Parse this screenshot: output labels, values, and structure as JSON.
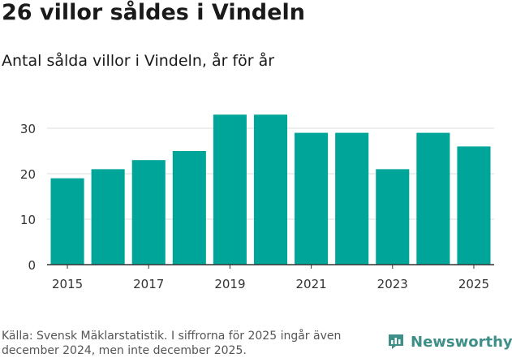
{
  "headline": "26 villor såldes i Vindeln",
  "chart_data": {
    "type": "bar",
    "title": "Antal sålda villor i Vindeln, år för år",
    "xlabel": "",
    "ylabel": "",
    "categories": [
      "2015",
      "2016",
      "2017",
      "2018",
      "2019",
      "2020",
      "2021",
      "2022",
      "2023",
      "2024",
      "2025"
    ],
    "values": [
      19,
      21,
      23,
      25,
      33,
      33,
      29,
      29,
      21,
      29,
      26
    ],
    "x_tick_labels": [
      "2015",
      "2017",
      "2019",
      "2021",
      "2023",
      "2025"
    ],
    "y_ticks": [
      0,
      10,
      20,
      30
    ],
    "ylim": [
      0,
      35
    ],
    "grid": true,
    "bar_color": "#00a59a"
  },
  "footer": {
    "source": "Källa: Svensk Mäklarstatistik. I siffrorna för 2025 ingår även december 2024, men inte december 2025.",
    "brand": "Newsworthy",
    "brand_icon": "newsworthy-logo-icon"
  },
  "colors": {
    "bar": "#00a59a",
    "grid": "#dddddd",
    "axis": "#333333",
    "brand": "#3d8f88"
  }
}
